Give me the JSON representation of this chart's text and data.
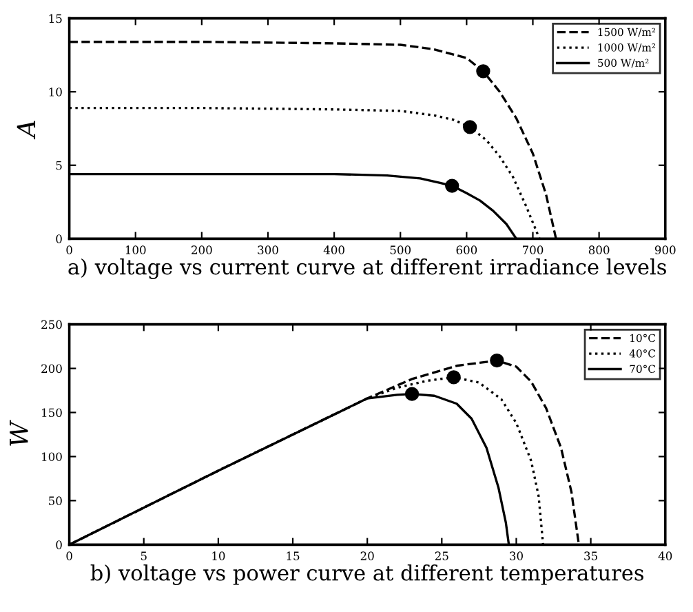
{
  "chart_data": [
    {
      "type": "line",
      "xlabel": "a) voltage vs current curve at different irradiance levels",
      "ylabel": "A",
      "xlim": [
        0,
        900
      ],
      "ylim": [
        0,
        15
      ],
      "xticks": [
        0,
        100,
        200,
        300,
        400,
        500,
        600,
        700,
        800,
        900
      ],
      "yticks": [
        0,
        5,
        10,
        15
      ],
      "grid": false,
      "legend": "top right",
      "series": [
        {
          "name": "1500 W/m²",
          "color": "#000000",
          "line_style": "dashed",
          "x": [
            0,
            200,
            400,
            500,
            550,
            600,
            625,
            650,
            675,
            700,
            720,
            735
          ],
          "values": [
            13.4,
            13.4,
            13.3,
            13.2,
            12.9,
            12.3,
            11.4,
            10.0,
            8.2,
            5.8,
            3.0,
            0
          ]
        },
        {
          "name": "1000 W/m²",
          "color": "#000000",
          "line_style": "dotted",
          "x": [
            0,
            200,
            400,
            500,
            550,
            580,
            605,
            630,
            650,
            670,
            690,
            710
          ],
          "values": [
            8.9,
            8.9,
            8.8,
            8.7,
            8.4,
            8.1,
            7.6,
            6.7,
            5.6,
            4.2,
            2.2,
            0
          ]
        },
        {
          "name": "500 W/m²",
          "color": "#000000",
          "line_style": "solid",
          "x": [
            0,
            200,
            400,
            480,
            530,
            560,
            578,
            600,
            620,
            640,
            660,
            675
          ],
          "values": [
            4.4,
            4.4,
            4.4,
            4.3,
            4.1,
            3.8,
            3.6,
            3.1,
            2.6,
            1.9,
            1.0,
            0
          ]
        },
        {
          "type": "scatter",
          "color": "#000000",
          "marker": "circle",
          "x": [
            625,
            605,
            578
          ],
          "values": [
            11.4,
            7.6,
            3.6
          ]
        }
      ]
    },
    {
      "type": "line",
      "xlabel": "b) voltage vs power curve at different temperatures",
      "ylabel": "W",
      "xlim": [
        0,
        40
      ],
      "ylim": [
        0,
        250
      ],
      "xticks": [
        0,
        5,
        10,
        15,
        20,
        25,
        30,
        35,
        40
      ],
      "yticks": [
        0,
        50,
        100,
        150,
        200,
        250
      ],
      "grid": false,
      "legend": "top right",
      "series": [
        {
          "name": "10°C",
          "color": "#000000",
          "line_style": "dashed",
          "x": [
            0,
            10,
            20,
            23,
            26,
            28.7,
            30,
            31,
            32,
            33,
            33.7,
            34.2
          ],
          "values": [
            0,
            84,
            166,
            188,
            203,
            209,
            202,
            185,
            155,
            110,
            60,
            0
          ]
        },
        {
          "name": "40°C",
          "color": "#000000",
          "line_style": "dotted",
          "x": [
            0,
            10,
            20,
            22,
            24,
            25.8,
            27.5,
            29,
            30,
            31,
            31.5,
            31.8
          ],
          "values": [
            0,
            84,
            166,
            178,
            186,
            190,
            184,
            165,
            138,
            95,
            55,
            0
          ]
        },
        {
          "name": "70°C",
          "color": "#000000",
          "line_style": "solid",
          "x": [
            0,
            10,
            20,
            22,
            23,
            24.5,
            26,
            27,
            28,
            28.8,
            29.3,
            29.5
          ],
          "values": [
            0,
            84,
            166,
            170,
            171,
            169,
            160,
            143,
            110,
            65,
            25,
            0
          ]
        },
        {
          "type": "scatter",
          "color": "#000000",
          "marker": "circle",
          "x": [
            23,
            25.8,
            28.7
          ],
          "values": [
            171,
            190,
            209
          ]
        }
      ]
    }
  ]
}
